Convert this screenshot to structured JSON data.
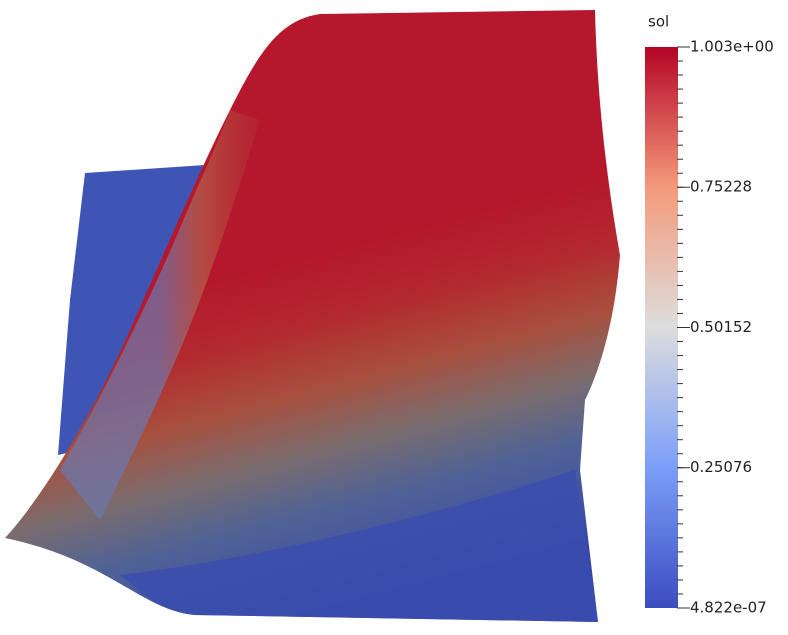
{
  "colorbar": {
    "title": "sol",
    "range": [
      4.822e-07,
      1.003
    ],
    "ticks": [
      {
        "value": 1.003,
        "label": "1.003e+00"
      },
      {
        "value": 0.75228,
        "label": "0.75228"
      },
      {
        "value": 0.50152,
        "label": "0.50152"
      },
      {
        "value": 0.25076,
        "label": "0.25076"
      },
      {
        "value": 4.822e-07,
        "label": "4.822e-07"
      }
    ]
  }
}
